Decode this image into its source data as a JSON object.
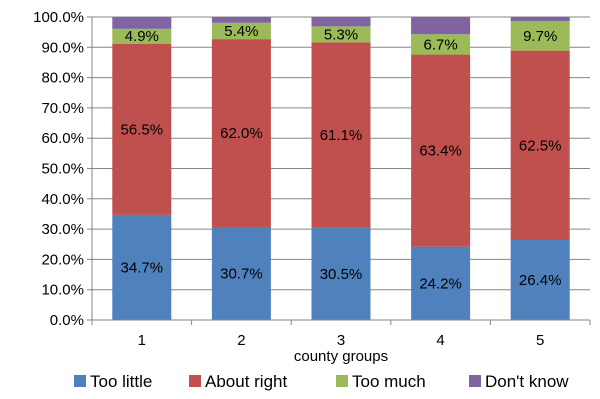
{
  "chart_data": {
    "type": "bar",
    "stacked": true,
    "categories": [
      "1",
      "2",
      "3",
      "4",
      "5"
    ],
    "series": [
      {
        "name": "Too little",
        "color": "#4f81bd",
        "values": [
          34.7,
          30.7,
          30.5,
          24.2,
          26.4
        ],
        "labels": [
          "34.7%",
          "30.7%",
          "30.5%",
          "24.2%",
          "26.4%"
        ]
      },
      {
        "name": "About right",
        "color": "#c0504d",
        "values": [
          56.5,
          62.0,
          61.1,
          63.4,
          62.5
        ],
        "labels": [
          "56.5%",
          "62.0%",
          "61.1%",
          "63.4%",
          "62.5%"
        ]
      },
      {
        "name": "Too much",
        "color": "#9bbb59",
        "values": [
          4.9,
          5.4,
          5.3,
          6.7,
          9.7
        ],
        "labels": [
          "4.9%",
          "5.4%",
          "5.3%",
          "6.7%",
          "9.7%"
        ]
      },
      {
        "name": "Don't know",
        "color": "#8064a2",
        "values": [
          3.9,
          1.9,
          3.1,
          5.7,
          1.4
        ],
        "labels": []
      }
    ],
    "xlabel": "county groups",
    "ylabel": "",
    "ylim": [
      0,
      100
    ],
    "yticks": [
      "0.0%",
      "10.0%",
      "20.0%",
      "30.0%",
      "40.0%",
      "50.0%",
      "60.0%",
      "70.0%",
      "80.0%",
      "90.0%",
      "100.0%"
    ],
    "grid": true,
    "legend": "bottom"
  }
}
